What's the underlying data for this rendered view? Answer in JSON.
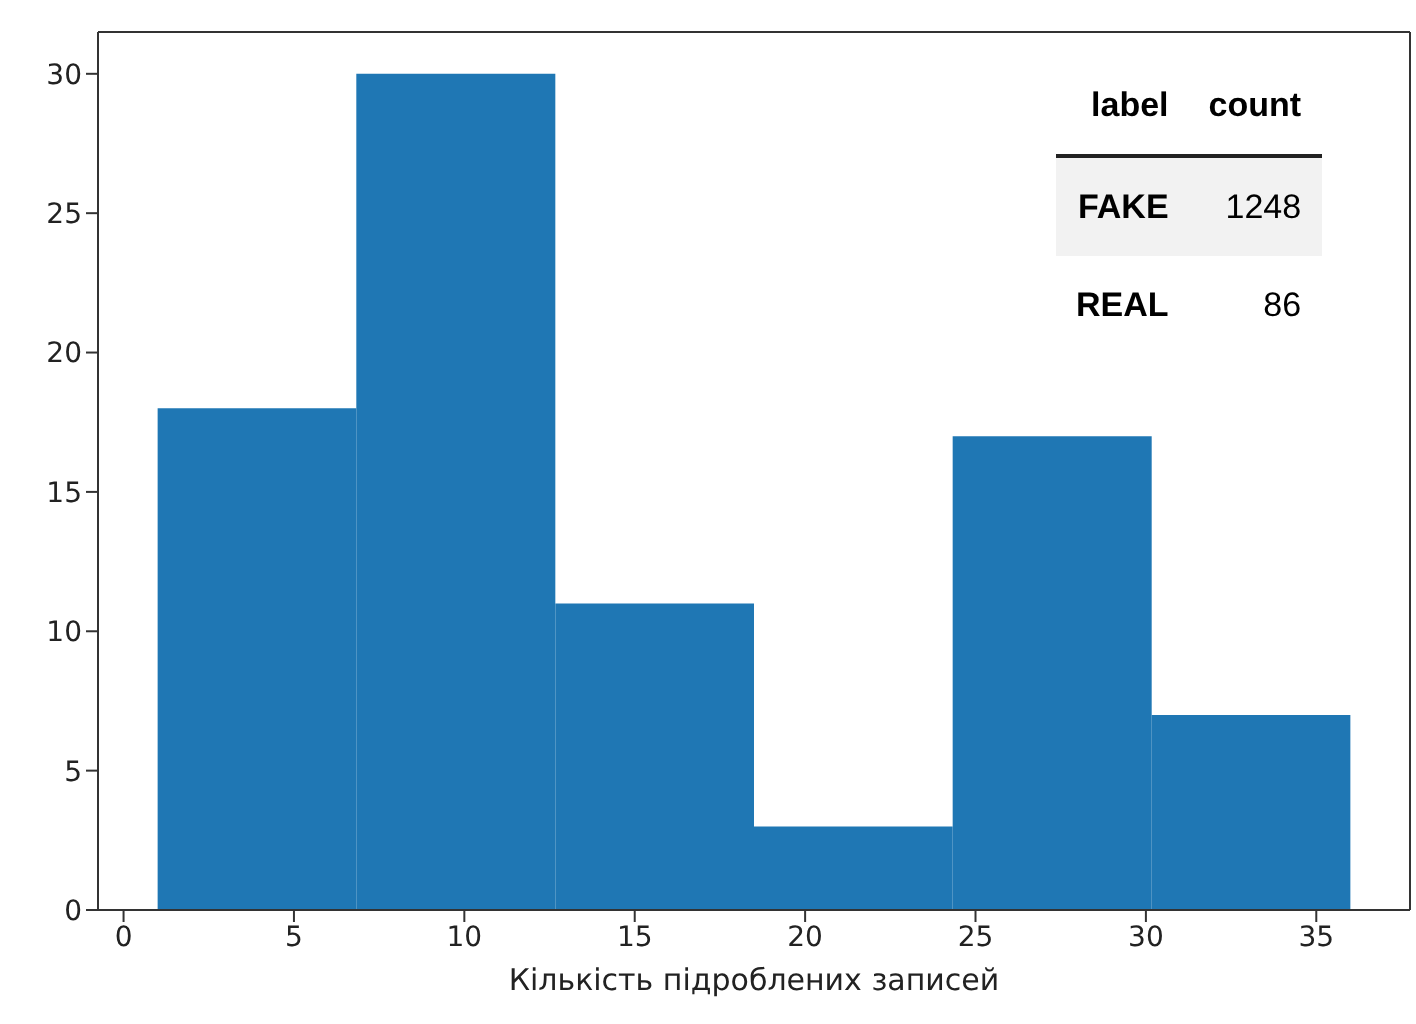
{
  "chart_data": {
    "type": "histogram",
    "xlabel": "Кількість підроблених записей",
    "bins": [
      1,
      6.83,
      12.67,
      18.5,
      24.33,
      30.17,
      36
    ],
    "values": [
      18,
      30,
      11,
      3,
      17,
      7
    ],
    "color": "#1f77b4",
    "xlim": [
      -0.75,
      37.75
    ],
    "xticks": [
      0,
      5,
      10,
      15,
      20,
      25,
      30,
      35
    ],
    "ylim": [
      0,
      31.5
    ],
    "yticks": [
      0,
      5,
      10,
      15,
      20,
      25,
      30
    ],
    "annotations": [
      "label",
      "count",
      "FAKE",
      "1248",
      "REAL",
      "86"
    ]
  }
}
